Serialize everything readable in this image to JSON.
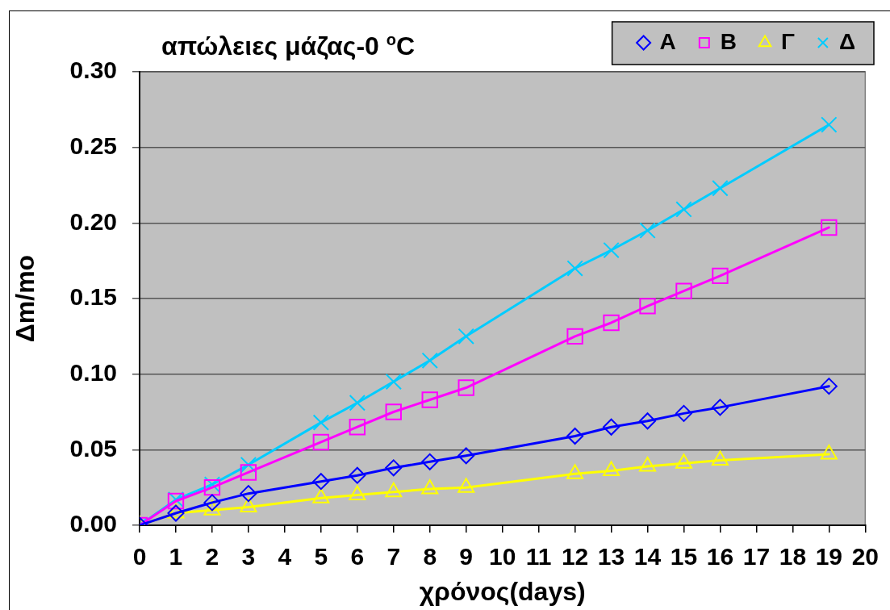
{
  "chart_data": {
    "type": "line",
    "title": "απώλειες μάζας-0 $^{o}$C",
    "xlabel": "χρόνος(days)",
    "ylabel": "Δm/mo",
    "x": [
      0,
      1,
      2,
      3,
      5,
      6,
      7,
      8,
      9,
      12,
      13,
      14,
      15,
      16,
      19
    ],
    "series": [
      {
        "name": "A",
        "color": "#0000ff",
        "marker": "diamond",
        "values": [
          0,
          0.008,
          0.015,
          0.021,
          0.029,
          0.033,
          0.038,
          0.042,
          0.046,
          0.059,
          0.065,
          0.069,
          0.074,
          0.078,
          0.092
        ]
      },
      {
        "name": "B",
        "color": "#ff00ff",
        "marker": "square",
        "values": [
          0,
          0.016,
          0.025,
          0.035,
          0.055,
          0.065,
          0.075,
          0.083,
          0.091,
          0.125,
          0.134,
          0.145,
          0.155,
          0.165,
          0.197
        ]
      },
      {
        "name": "Γ",
        "color": "#ffff00",
        "marker": "triangle",
        "values": [
          0,
          0.008,
          0.01,
          0.012,
          0.018,
          0.02,
          0.022,
          0.024,
          0.025,
          0.034,
          0.036,
          0.039,
          0.041,
          0.043,
          0.047
        ]
      },
      {
        "name": "Δ",
        "color": "#00ccff",
        "marker": "cross",
        "values": [
          0,
          0.017,
          0.027,
          0.04,
          0.068,
          0.081,
          0.095,
          0.109,
          0.125,
          0.17,
          0.182,
          0.195,
          0.209,
          0.223,
          0.265
        ]
      }
    ],
    "xlim": [
      0,
      20
    ],
    "xticks": [
      0,
      1,
      2,
      3,
      4,
      5,
      6,
      7,
      8,
      9,
      10,
      11,
      12,
      13,
      14,
      15,
      16,
      17,
      18,
      19,
      20
    ],
    "ylim": [
      0,
      0.3
    ],
    "yticks": [
      {
        "value": 0,
        "label": "0.00"
      },
      0.05,
      {
        "value": 0.1,
        "label": "0.10"
      },
      0.15,
      {
        "value": 0.2,
        "label": "0.20"
      },
      0.25,
      {
        "value": 0.3,
        "label": "0.30"
      }
    ],
    "grid": "y",
    "legend": "top right",
    "line_style": "solid"
  }
}
